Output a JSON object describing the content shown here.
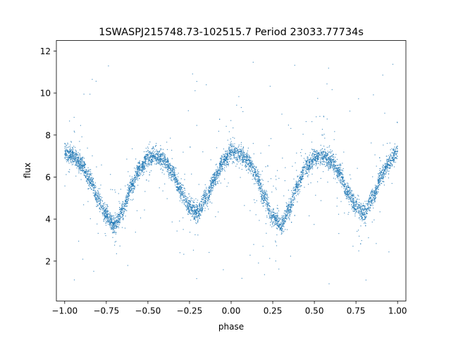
{
  "chart_data": {
    "type": "scatter",
    "title": "1SWASPJ215748.73-102515.7 Period 23033.77734s",
    "xlabel": "phase",
    "ylabel": "flux",
    "xlim": [
      -1.05,
      1.05
    ],
    "ylim": [
      0.1,
      12.5
    ],
    "xticks": [
      -1.0,
      -0.75,
      -0.5,
      -0.25,
      0.0,
      0.25,
      0.5,
      0.75,
      1.0
    ],
    "xtick_labels": [
      "−1.00",
      "−0.75",
      "−0.50",
      "−0.25",
      "0.00",
      "0.25",
      "0.50",
      "0.75",
      "1.00"
    ],
    "yticks": [
      2,
      4,
      6,
      8,
      10,
      12
    ],
    "ytick_labels": [
      "2",
      "4",
      "6",
      "8",
      "10",
      "12"
    ],
    "grid": false,
    "legend": "none",
    "marker_color": "#1f77b4",
    "series": [
      {
        "description_of_shape_points": "phase-folded light curve, folded twice (phase -1 to 1)",
        "x": [
          -1.0,
          -0.95,
          -0.9,
          -0.85,
          -0.8,
          -0.75,
          -0.7,
          -0.65,
          -0.6,
          -0.55,
          -0.5,
          -0.45,
          -0.4,
          -0.35,
          -0.3,
          -0.25,
          -0.2,
          -0.15,
          -0.1,
          -0.05,
          0.0,
          0.05,
          0.1,
          0.15,
          0.2,
          0.25,
          0.3,
          0.35,
          0.4,
          0.45,
          0.5,
          0.55,
          0.6,
          0.65,
          0.7,
          0.75,
          0.8,
          0.85,
          0.9,
          0.95,
          1.0
        ],
        "y": [
          7.2,
          7.0,
          6.6,
          5.9,
          5.0,
          4.2,
          3.7,
          4.4,
          5.6,
          6.4,
          6.9,
          7.0,
          6.8,
          6.2,
          5.3,
          4.6,
          4.3,
          5.0,
          5.9,
          6.7,
          7.2,
          7.1,
          6.8,
          6.1,
          5.0,
          4.1,
          3.7,
          4.5,
          5.6,
          6.5,
          6.9,
          7.0,
          6.8,
          6.2,
          5.3,
          4.6,
          4.3,
          5.0,
          6.0,
          6.7,
          7.2
        ]
      }
    ]
  }
}
